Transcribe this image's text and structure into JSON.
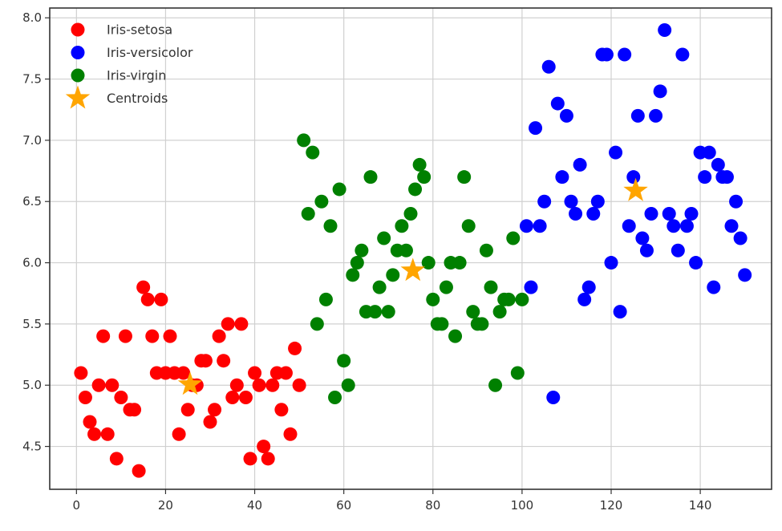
{
  "chart_data": {
    "type": "scatter",
    "title": "",
    "xlabel": "",
    "ylabel": "",
    "xlim": [
      -6,
      156
    ],
    "ylim": [
      4.15,
      8.08
    ],
    "xticks": [
      0,
      20,
      40,
      60,
      80,
      100,
      120,
      140
    ],
    "xtick_labels": [
      "0",
      "20",
      "40",
      "60",
      "80",
      "100",
      "120",
      "140"
    ],
    "yticks": [
      4.5,
      5.0,
      5.5,
      6.0,
      6.5,
      7.0,
      7.5,
      8.0
    ],
    "ytick_labels": [
      "4.5",
      "5.0",
      "5.5",
      "6.0",
      "6.5",
      "7.0",
      "7.5",
      "8.0"
    ],
    "grid": true,
    "legend_position": "top-left",
    "series": [
      {
        "name": "Iris-setosa",
        "color": "#ff0000",
        "marker": "circle",
        "points": [
          [
            1,
            5.1
          ],
          [
            2,
            4.9
          ],
          [
            3,
            4.7
          ],
          [
            4,
            4.6
          ],
          [
            5,
            5.0
          ],
          [
            6,
            5.4
          ],
          [
            7,
            4.6
          ],
          [
            8,
            5.0
          ],
          [
            9,
            4.4
          ],
          [
            10,
            4.9
          ],
          [
            11,
            5.4
          ],
          [
            12,
            4.8
          ],
          [
            13,
            4.8
          ],
          [
            14,
            4.3
          ],
          [
            15,
            5.8
          ],
          [
            16,
            5.7
          ],
          [
            17,
            5.4
          ],
          [
            18,
            5.1
          ],
          [
            19,
            5.7
          ],
          [
            20,
            5.1
          ],
          [
            21,
            5.4
          ],
          [
            22,
            5.1
          ],
          [
            23,
            4.6
          ],
          [
            24,
            5.1
          ],
          [
            25,
            4.8
          ],
          [
            26,
            5.0
          ],
          [
            27,
            5.0
          ],
          [
            28,
            5.2
          ],
          [
            29,
            5.2
          ],
          [
            30,
            4.7
          ],
          [
            31,
            4.8
          ],
          [
            32,
            5.4
          ],
          [
            33,
            5.2
          ],
          [
            34,
            5.5
          ],
          [
            35,
            4.9
          ],
          [
            36,
            5.0
          ],
          [
            37,
            5.5
          ],
          [
            38,
            4.9
          ],
          [
            39,
            4.4
          ],
          [
            40,
            5.1
          ],
          [
            41,
            5.0
          ],
          [
            42,
            4.5
          ],
          [
            43,
            4.4
          ],
          [
            44,
            5.0
          ],
          [
            45,
            5.1
          ],
          [
            46,
            4.8
          ],
          [
            47,
            5.1
          ],
          [
            48,
            4.6
          ],
          [
            49,
            5.3
          ],
          [
            50,
            5.0
          ]
        ]
      },
      {
        "name": "Iris-versicolor",
        "color": "#0000ff",
        "marker": "circle",
        "points": [
          [
            101,
            6.3
          ],
          [
            102,
            5.8
          ],
          [
            103,
            7.1
          ],
          [
            104,
            6.3
          ],
          [
            105,
            6.5
          ],
          [
            106,
            7.6
          ],
          [
            107,
            4.9
          ],
          [
            108,
            7.3
          ],
          [
            109,
            6.7
          ],
          [
            110,
            7.2
          ],
          [
            111,
            6.5
          ],
          [
            112,
            6.4
          ],
          [
            113,
            6.8
          ],
          [
            114,
            5.7
          ],
          [
            115,
            5.8
          ],
          [
            116,
            6.4
          ],
          [
            117,
            6.5
          ],
          [
            118,
            7.7
          ],
          [
            119,
            7.7
          ],
          [
            120,
            6.0
          ],
          [
            121,
            6.9
          ],
          [
            122,
            5.6
          ],
          [
            123,
            7.7
          ],
          [
            124,
            6.3
          ],
          [
            125,
            6.7
          ],
          [
            126,
            7.2
          ],
          [
            127,
            6.2
          ],
          [
            128,
            6.1
          ],
          [
            129,
            6.4
          ],
          [
            130,
            7.2
          ],
          [
            131,
            7.4
          ],
          [
            132,
            7.9
          ],
          [
            133,
            6.4
          ],
          [
            134,
            6.3
          ],
          [
            135,
            6.1
          ],
          [
            136,
            7.7
          ],
          [
            137,
            6.3
          ],
          [
            138,
            6.4
          ],
          [
            139,
            6.0
          ],
          [
            140,
            6.9
          ],
          [
            141,
            6.7
          ],
          [
            142,
            6.9
          ],
          [
            143,
            5.8
          ],
          [
            144,
            6.8
          ],
          [
            145,
            6.7
          ],
          [
            146,
            6.7
          ],
          [
            147,
            6.3
          ],
          [
            148,
            6.5
          ],
          [
            149,
            6.2
          ],
          [
            150,
            5.9
          ]
        ]
      },
      {
        "name": "Iris-virgin",
        "color": "#008000",
        "marker": "circle",
        "points": [
          [
            51,
            7.0
          ],
          [
            52,
            6.4
          ],
          [
            53,
            6.9
          ],
          [
            54,
            5.5
          ],
          [
            55,
            6.5
          ],
          [
            56,
            5.7
          ],
          [
            57,
            6.3
          ],
          [
            58,
            4.9
          ],
          [
            59,
            6.6
          ],
          [
            60,
            5.2
          ],
          [
            61,
            5.0
          ],
          [
            62,
            5.9
          ],
          [
            63,
            6.0
          ],
          [
            64,
            6.1
          ],
          [
            65,
            5.6
          ],
          [
            66,
            6.7
          ],
          [
            67,
            5.6
          ],
          [
            68,
            5.8
          ],
          [
            69,
            6.2
          ],
          [
            70,
            5.6
          ],
          [
            71,
            5.9
          ],
          [
            72,
            6.1
          ],
          [
            73,
            6.3
          ],
          [
            74,
            6.1
          ],
          [
            75,
            6.4
          ],
          [
            76,
            6.6
          ],
          [
            77,
            6.8
          ],
          [
            78,
            6.7
          ],
          [
            79,
            6.0
          ],
          [
            80,
            5.7
          ],
          [
            81,
            5.5
          ],
          [
            82,
            5.5
          ],
          [
            83,
            5.8
          ],
          [
            84,
            6.0
          ],
          [
            85,
            5.4
          ],
          [
            86,
            6.0
          ],
          [
            87,
            6.7
          ],
          [
            88,
            6.3
          ],
          [
            89,
            5.6
          ],
          [
            90,
            5.5
          ],
          [
            91,
            5.5
          ],
          [
            92,
            6.1
          ],
          [
            93,
            5.8
          ],
          [
            94,
            5.0
          ],
          [
            95,
            5.6
          ],
          [
            96,
            5.7
          ],
          [
            97,
            5.7
          ],
          [
            98,
            6.2
          ],
          [
            99,
            5.1
          ],
          [
            100,
            5.7
          ]
        ]
      },
      {
        "name": "Centroids",
        "color": "#ffa500",
        "marker": "star",
        "points": [
          [
            25.5,
            5.006
          ],
          [
            75.5,
            5.936
          ],
          [
            125.5,
            6.588
          ]
        ]
      }
    ]
  }
}
